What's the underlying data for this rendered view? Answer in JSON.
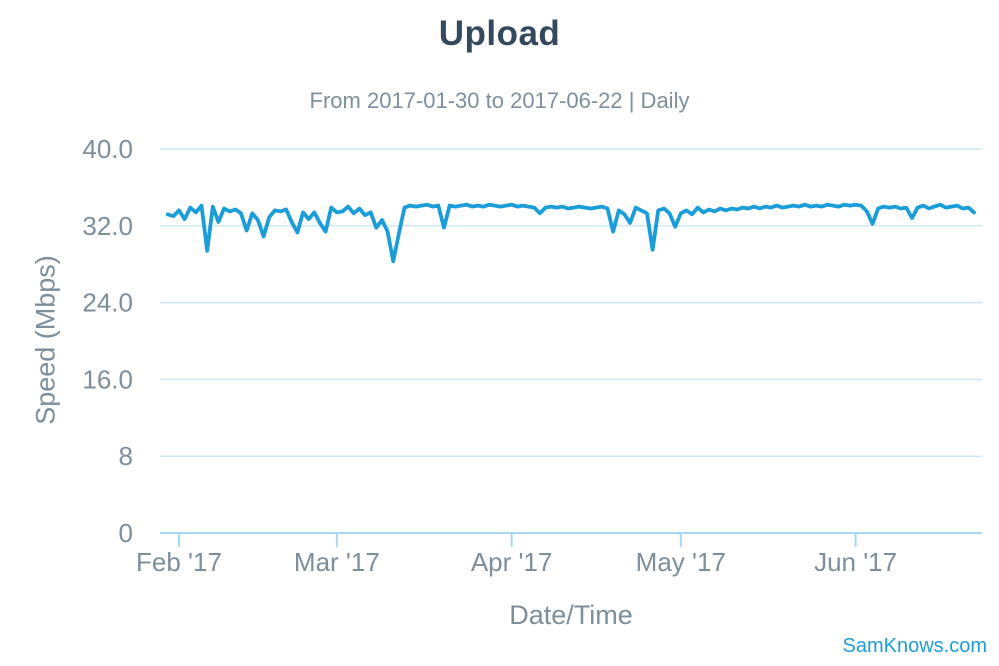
{
  "chart": {
    "title": "Upload",
    "subtitle": "From 2017-01-30 to 2017-06-22 | Daily",
    "y_axis_title": "Speed (Mbps)",
    "x_axis_title": "Date/Time",
    "credits": "SamKnows.com"
  },
  "chart_data": {
    "type": "line",
    "title": "Upload",
    "subtitle": "From 2017-01-30 to 2017-06-22 | Daily",
    "xlabel": "Date/Time",
    "ylabel": "Speed (Mbps)",
    "x_start_date": "2017-01-30",
    "x_end_date": "2017-06-22",
    "interval": "daily",
    "ylim": [
      0,
      40
    ],
    "grid": true,
    "legend": false,
    "line_color": "#1b9dd9",
    "grid_color": "#cde8f7",
    "axis_color": "#a6d8f2",
    "label_color": "#7d8e9c",
    "y_ticks": [
      {
        "label": "0",
        "value": 0
      },
      {
        "label": "8",
        "value": 8
      },
      {
        "label": "16.0",
        "value": 16
      },
      {
        "label": "24.0",
        "value": 24
      },
      {
        "label": "32.0",
        "value": 32
      },
      {
        "label": "40.0",
        "value": 40
      }
    ],
    "x_ticks": [
      {
        "label": "Feb '17",
        "day": 2
      },
      {
        "label": "Mar '17",
        "day": 30
      },
      {
        "label": "Apr '17",
        "day": 61
      },
      {
        "label": "May '17",
        "day": 91
      },
      {
        "label": "Jun '17",
        "day": 122
      }
    ],
    "values": [
      33.2,
      33.0,
      33.6,
      32.7,
      33.9,
      33.4,
      34.1,
      29.4,
      34.0,
      32.4,
      33.8,
      33.5,
      33.7,
      33.3,
      31.5,
      33.3,
      32.6,
      30.9,
      32.9,
      33.6,
      33.5,
      33.7,
      32.4,
      31.3,
      33.4,
      32.7,
      33.4,
      32.3,
      31.4,
      33.9,
      33.4,
      33.5,
      34.0,
      33.3,
      33.8,
      33.1,
      33.4,
      31.8,
      32.6,
      31.4,
      28.3,
      31.2,
      33.9,
      34.1,
      34.0,
      34.1,
      34.2,
      34.0,
      34.1,
      31.8,
      34.1,
      34.0,
      34.1,
      34.2,
      34.0,
      34.1,
      34.0,
      34.2,
      34.1,
      34.0,
      34.1,
      34.2,
      34.0,
      34.1,
      34.0,
      33.9,
      33.3,
      33.9,
      34.0,
      33.9,
      34.0,
      33.8,
      33.9,
      34.0,
      33.9,
      33.8,
      33.9,
      34.0,
      33.8,
      31.4,
      33.6,
      33.2,
      32.3,
      33.9,
      33.6,
      33.3,
      29.5,
      33.6,
      33.8,
      33.3,
      31.9,
      33.3,
      33.6,
      33.2,
      33.9,
      33.4,
      33.7,
      33.5,
      33.8,
      33.6,
      33.8,
      33.7,
      33.9,
      33.8,
      34.0,
      33.8,
      34.0,
      33.9,
      34.1,
      33.9,
      34.0,
      34.1,
      34.0,
      34.2,
      34.0,
      34.1,
      34.0,
      34.2,
      34.1,
      34.0,
      34.2,
      34.1,
      34.2,
      34.1,
      33.5,
      32.2,
      33.8,
      34.0,
      33.9,
      34.0,
      33.8,
      33.9,
      32.8,
      33.9,
      34.1,
      33.8,
      34.0,
      34.2,
      33.9,
      34.0,
      34.1,
      33.8,
      33.9,
      33.4
    ]
  }
}
